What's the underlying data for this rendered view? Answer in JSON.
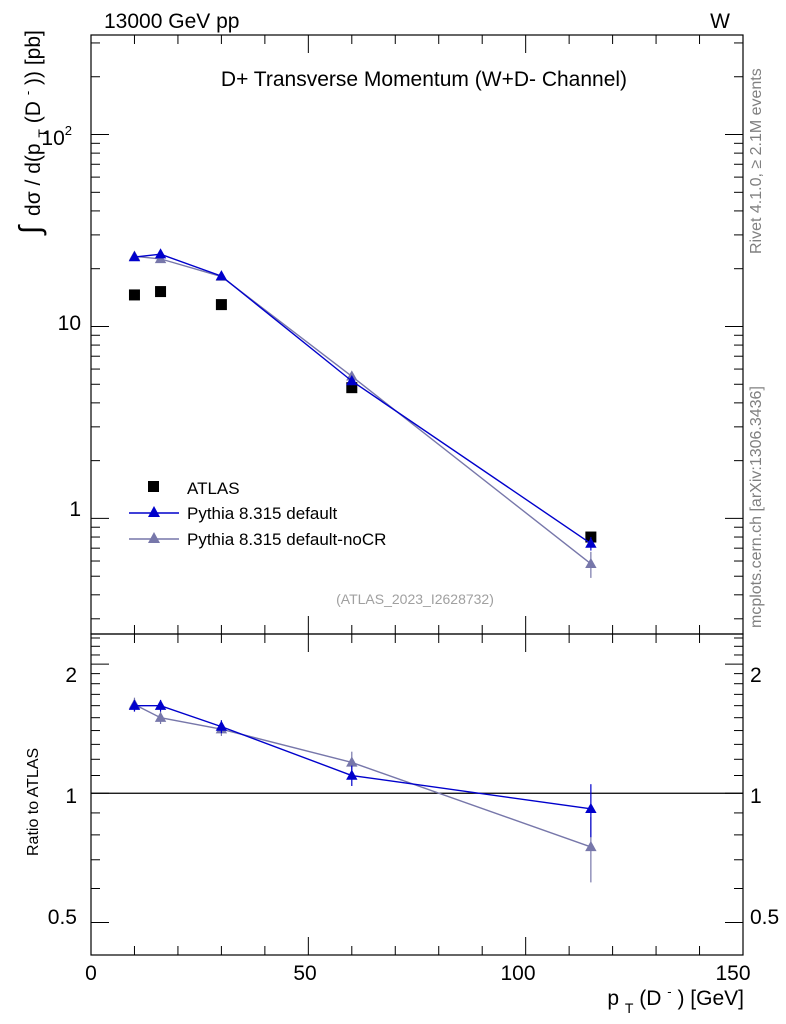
{
  "header": {
    "left": "13000 GeV pp",
    "right": "W"
  },
  "side_labels": {
    "rivet": "Rivet 4.1.0, ≥ 2.1M events",
    "mcplots": "mcplots.cern.ch [arXiv:1306.3436]"
  },
  "colors": {
    "data": "#000000",
    "default": "#0000cc",
    "nocr": "#7777aa",
    "axis": "#000000"
  },
  "chart_data": [
    {
      "type": "scatter",
      "title": "D+ Transverse Momentum (W+D- Channel)",
      "ylabel": "∫ dσ / d(p_T(D⁻)) [pb]",
      "ylabel_parts": [
        "∫",
        "dσ / d(p",
        "T",
        "(D",
        "-",
        ")) [pb]"
      ],
      "xlim": [
        0,
        150
      ],
      "ylim": [
        0.25,
        330
      ],
      "yscale": "log",
      "y_ticks": [
        1,
        10,
        100
      ],
      "y_tick_labels": [
        "1",
        "10",
        "10",
        "2"
      ],
      "x_ticks": [
        0,
        50,
        100,
        150
      ],
      "watermark": "(ATLAS_2023_I2628732)",
      "legend_position": "lower-left",
      "series": [
        {
          "name": "ATLAS",
          "marker": "square",
          "color": "#000000",
          "x": [
            10,
            16,
            30,
            60,
            115
          ],
          "y": [
            14.6,
            15.2,
            13.0,
            4.8,
            0.8
          ]
        },
        {
          "name": "Pythia 8.315 default",
          "marker": "triangle",
          "color": "#0000cc",
          "x": [
            10,
            16,
            30,
            60,
            115
          ],
          "y": [
            23.0,
            23.8,
            18.3,
            5.2,
            0.74
          ],
          "err": [
            0.6,
            0.6,
            0.5,
            0.25,
            0.06
          ]
        },
        {
          "name": "Pythia 8.315 default-noCR",
          "marker": "triangle",
          "color": "#7777aa",
          "x": [
            10,
            16,
            30,
            60,
            115
          ],
          "y": [
            23.2,
            22.5,
            18.2,
            5.5,
            0.58
          ],
          "err": [
            0.6,
            0.6,
            0.5,
            0.25,
            0.09
          ]
        }
      ]
    },
    {
      "type": "line",
      "ylabel": "Ratio to ATLAS",
      "xlabel": "p_T(D⁻) [GeV]",
      "xlabel_parts": [
        "p",
        "T",
        "(D",
        "-",
        ") [GeV]"
      ],
      "xlim": [
        0,
        150
      ],
      "ylim": [
        0.42,
        2.35
      ],
      "yscale": "log",
      "y_ticks": [
        0.5,
        1,
        2
      ],
      "y_tick_labels": [
        "0.5",
        "1",
        "2"
      ],
      "x_tick_labels": [
        "0",
        "50",
        "100",
        "150"
      ],
      "reference_line": 1,
      "series": [
        {
          "name": "Pythia 8.315 default",
          "color": "#0000cc",
          "x": [
            10,
            16,
            30,
            60,
            115
          ],
          "y": [
            1.6,
            1.6,
            1.43,
            1.1,
            0.92
          ],
          "err": [
            0.05,
            0.05,
            0.05,
            0.06,
            0.13
          ]
        },
        {
          "name": "Pythia 8.315 default-noCR",
          "color": "#7777aa",
          "x": [
            10,
            16,
            30,
            60,
            115
          ],
          "y": [
            1.61,
            1.5,
            1.41,
            1.18,
            0.75
          ],
          "err": [
            0.06,
            0.05,
            0.05,
            0.07,
            0.13
          ]
        }
      ]
    }
  ]
}
